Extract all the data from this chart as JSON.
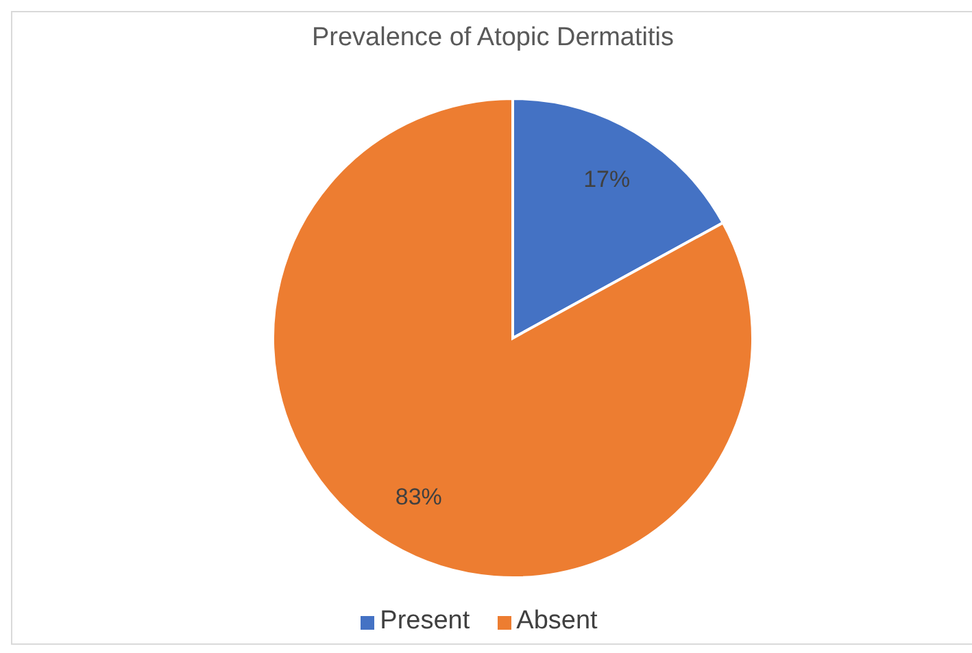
{
  "chart_data": {
    "type": "pie",
    "title": "Prevalence of Atopic Dermatitis",
    "categories": [
      "Present",
      "Absent"
    ],
    "values": [
      17,
      83
    ],
    "colors": [
      "#4472c4",
      "#ed7d31"
    ],
    "value_labels": [
      "17%",
      "83%"
    ],
    "legend": "bottom"
  }
}
